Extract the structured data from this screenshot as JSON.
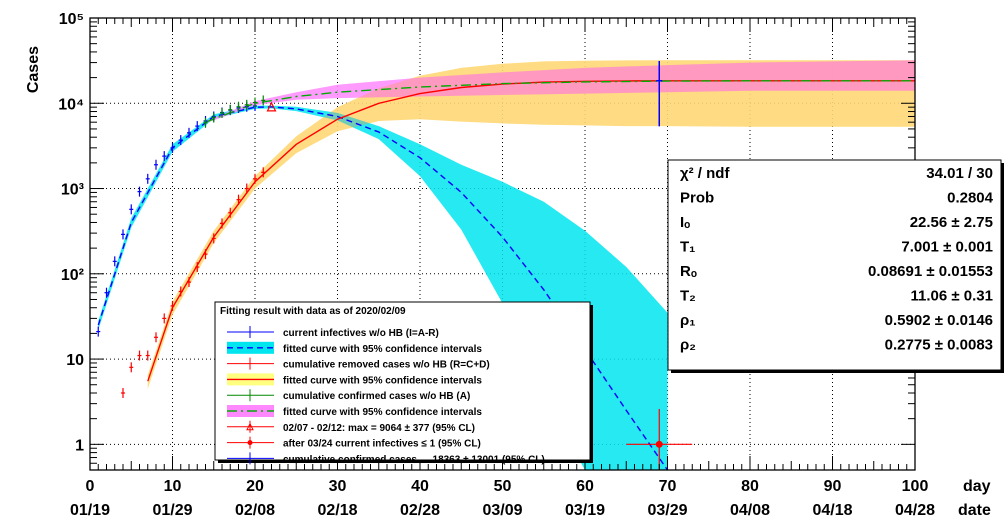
{
  "chart_data": {
    "type": "scatter",
    "ylabel": "Cases",
    "xlabel_top": "day",
    "xlabel_bottom": "date",
    "x_ticks": [
      "0",
      "10",
      "20",
      "30",
      "40",
      "50",
      "60",
      "70",
      "80",
      "90",
      "100"
    ],
    "date_ticks": [
      "01/19",
      "01/29",
      "02/08",
      "02/18",
      "02/28",
      "03/09",
      "03/19",
      "03/29",
      "04/08",
      "04/18",
      "04/28"
    ],
    "y_ticks": [
      "1",
      "10",
      "10²",
      "10³",
      "10⁴",
      "10⁵"
    ],
    "xlim": [
      0,
      100
    ],
    "ylim": [
      0.5,
      100000
    ],
    "y_scale": "log",
    "grid": true,
    "series": [
      {
        "name": "current infectives w/o HB (I=A-R)",
        "color": "#0000ff",
        "x": [
          1,
          2,
          3,
          4,
          5,
          6,
          7,
          8,
          9,
          10,
          11,
          12,
          13,
          14,
          15,
          16,
          17,
          18,
          19,
          20
        ],
        "y": [
          21,
          60,
          140,
          290,
          570,
          920,
          1300,
          1900,
          2400,
          3000,
          3700,
          4500,
          5400,
          6200,
          7000,
          7800,
          8300,
          8800,
          9100,
          9300
        ]
      },
      {
        "name": "cumulative removed cases w/o HB (R=C+D)",
        "color": "#ff0000",
        "x": [
          4,
          5,
          6,
          7,
          8,
          9,
          10,
          11,
          12,
          13,
          14,
          15,
          16,
          17,
          18,
          19,
          20,
          21
        ],
        "y": [
          4,
          8,
          11,
          11,
          18,
          30,
          42,
          62,
          80,
          120,
          170,
          260,
          390,
          520,
          740,
          1000,
          1300,
          1550
        ]
      },
      {
        "name": "cumulative confirmed cases w/o HB (A)",
        "color": "#008800",
        "x": [
          14,
          15,
          16,
          17,
          18,
          19,
          20,
          21
        ],
        "y": [
          5900,
          6800,
          7700,
          8400,
          9100,
          9600,
          10200,
          10800
        ]
      }
    ],
    "fits": [
      {
        "name": "fitted curve with 95% confidence intervals",
        "color": "#0000ff",
        "band": "#00e5ee",
        "style": "dashed",
        "x": [
          1,
          5,
          10,
          15,
          20,
          22,
          25,
          30,
          35,
          40,
          45,
          50,
          55,
          60,
          65,
          70
        ],
        "y": [
          25,
          400,
          3000,
          7000,
          9000,
          9064,
          8600,
          7000,
          4600,
          2300,
          900,
          270,
          65,
          13,
          2.5,
          0.5
        ],
        "band_lo": [
          22,
          350,
          2700,
          6600,
          8600,
          8700,
          8100,
          6300,
          3800,
          1400,
          330,
          45,
          3.5,
          0.5,
          0.5,
          0.5
        ],
        "band_hi": [
          28,
          450,
          3300,
          7400,
          9400,
          9400,
          9100,
          7700,
          5400,
          3300,
          1900,
          1200,
          700,
          320,
          120,
          35
        ]
      },
      {
        "name": "fitted curve with 95% confidence intervals",
        "color": "#ff0000",
        "band": "#ffff80",
        "style": "solid",
        "x": [
          7,
          10,
          15,
          20,
          25,
          30,
          35,
          40,
          45,
          50,
          55,
          60,
          65,
          70,
          80,
          90,
          100
        ],
        "y": [
          5.5,
          40,
          270,
          1200,
          3300,
          6500,
          10000,
          13000,
          15300,
          16800,
          17700,
          18100,
          18300,
          18350,
          18363,
          18363,
          18363
        ],
        "band_lo": [
          4.5,
          33,
          230,
          1000,
          2600,
          4700,
          6200,
          6500,
          6100,
          5800,
          5600,
          5500,
          5400,
          5400,
          5300,
          5300,
          5300
        ],
        "band_hi": [
          6.5,
          47,
          320,
          1400,
          4100,
          9000,
          15000,
          21000,
          26000,
          29000,
          31000,
          31500,
          31800,
          32000,
          32000,
          32000,
          32000
        ]
      },
      {
        "name": "fitted curve with 95% confidence intervals",
        "color": "#00aa00",
        "band": "#ff88ff",
        "style": "dashdot",
        "x": [
          14,
          20,
          25,
          30,
          40,
          50,
          60,
          70,
          80,
          90,
          100
        ],
        "y": [
          6000,
          10000,
          12000,
          13500,
          15500,
          17000,
          17800,
          18200,
          18363,
          18363,
          18363
        ],
        "band_lo": [
          5800,
          9500,
          11000,
          11500,
          12000,
          12500,
          13000,
          13500,
          14000,
          14000,
          14000
        ],
        "band_hi": [
          6200,
          10600,
          13500,
          16500,
          20000,
          23000,
          26000,
          28000,
          30000,
          31000,
          32000
        ]
      }
    ],
    "markers": [
      {
        "name": "02/07 - 02/12: max = 9064 ± 377 (95% CL)",
        "x": 22,
        "y": 9064,
        "color": "#ff0000"
      },
      {
        "name": "after 03/24 current infectives ≤ 1 (95% CL)",
        "x": 69,
        "y": 1,
        "x_err": 4,
        "y_lo": 0.5,
        "y_hi": 2.6,
        "color": "#ff0000"
      },
      {
        "name": "cumulative confirmed cases → 18363 ± 13001 (95% CL)",
        "x": 69,
        "y": 18363,
        "y_lo": 5362,
        "y_hi": 31364,
        "color": "#0000ff"
      }
    ],
    "legend": {
      "title": "Fitting result with data as of 2020/02/09",
      "entries": [
        "current infectives w/o HB (I=A-R)",
        "fitted curve with 95% confidence intervals",
        "cumulative removed cases w/o HB (R=C+D)",
        "fitted curve with 95% confidence intervals",
        "cumulative confirmed cases w/o HB (A)",
        "fitted curve with 95% confidence intervals",
        "02/07 - 02/12: max = 9064 ± 377 (95% CL)",
        "after 03/24 current infectives ≤ 1 (95% CL)",
        "cumulative confirmed cases → 18363 ± 13001 (95% CL)"
      ]
    },
    "stats": [
      {
        "label": "χ² / ndf",
        "value": "34.01 / 30"
      },
      {
        "label": "Prob",
        "value": "0.2804"
      },
      {
        "label": "Iₒ",
        "value": "22.56 ± 2.75"
      },
      {
        "label": "T₁",
        "value": "7.001 ± 0.001"
      },
      {
        "label": "Rₒ",
        "value": "0.08691 ± 0.01553"
      },
      {
        "label": "T₂",
        "value": "11.06 ± 0.31"
      },
      {
        "label": "ρ₁",
        "value": "0.5902 ± 0.0146"
      },
      {
        "label": "ρ₂",
        "value": "0.2775 ± 0.0083"
      }
    ]
  }
}
